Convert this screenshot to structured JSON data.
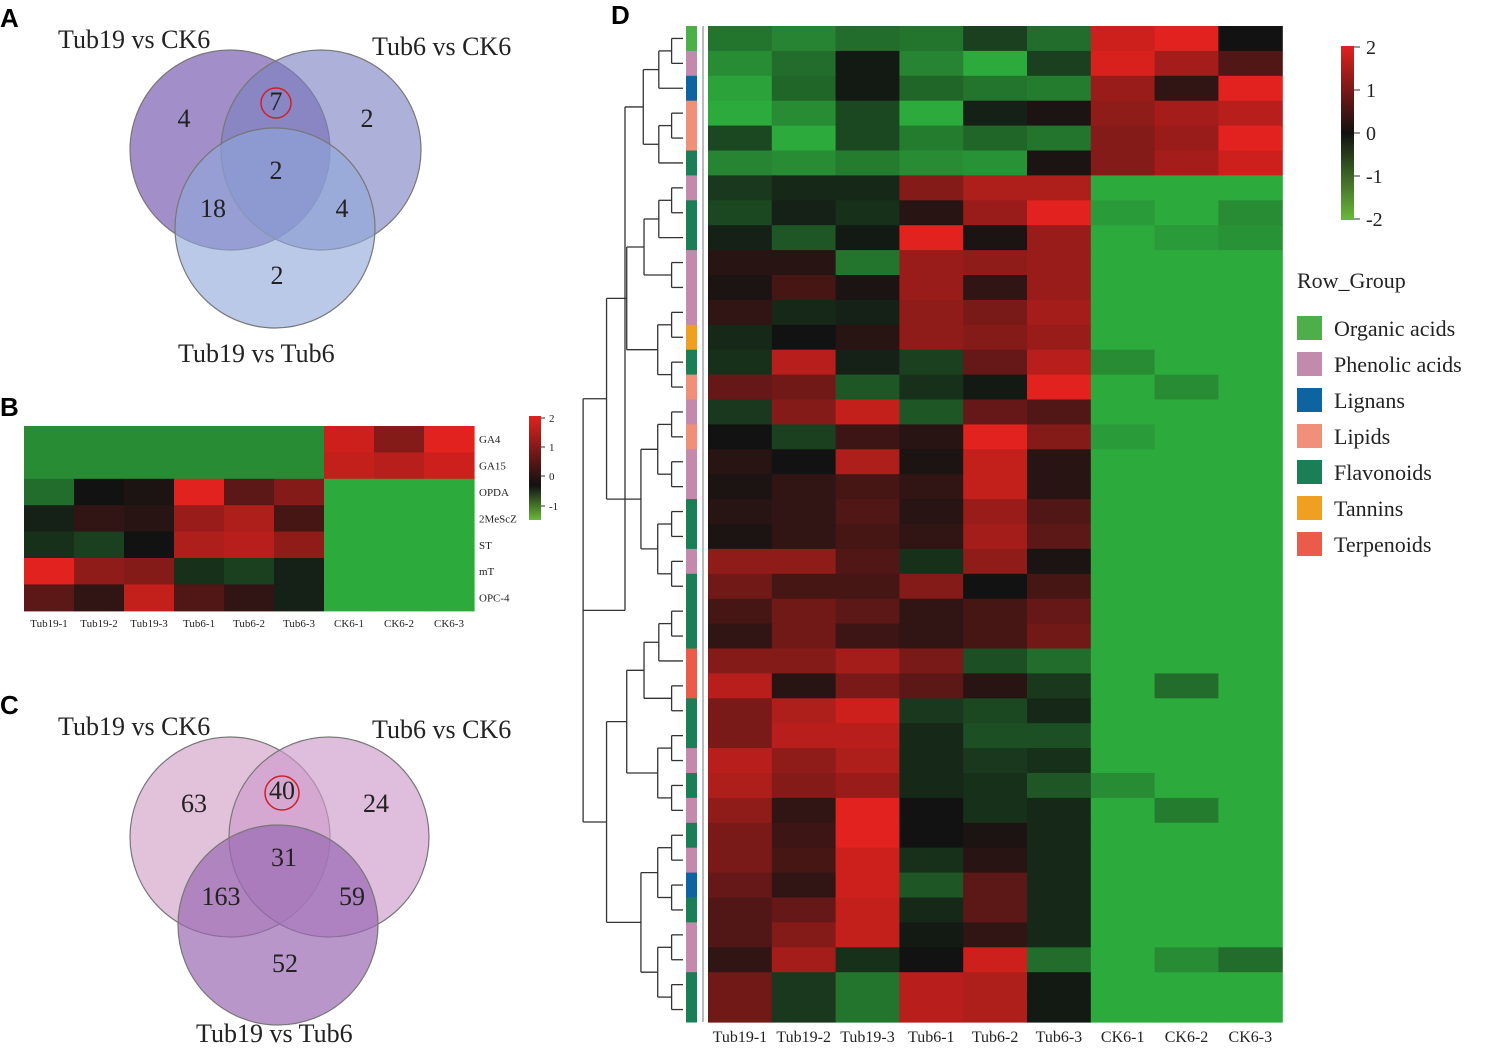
{
  "panels": {
    "A": {
      "letter": "A",
      "labels": [
        "Tub19 vs CK6",
        "Tub6 vs CK6",
        "Tub19 vs Tub6"
      ],
      "regions": {
        "only_tub19_ck6": "4",
        "only_tub6_ck6": "2",
        "only_tub19_tub6": "2",
        "tub19ck6_tub6ck6": "7",
        "tub19ck6_tub19tub6": "18",
        "tub6ck6_tub19tub6": "4",
        "all": "2"
      },
      "circle_colors": [
        "#7e62b3",
        "#7b80c0",
        "#8fa8da"
      ],
      "highlight": "tub19ck6_tub6ck6"
    },
    "B": {
      "letter": "B",
      "colorbar_ticks": [
        "2",
        "1",
        "0",
        "-1"
      ]
    },
    "C": {
      "letter": "C",
      "labels": [
        "Tub19 vs CK6",
        "Tub6 vs CK6",
        "Tub19 vs Tub6"
      ],
      "regions": {
        "only_tub19_ck6": "63",
        "only_tub6_ck6": "24",
        "only_tub19_tub6": "52",
        "tub19ck6_tub6ck6": "40",
        "tub19ck6_tub19tub6": "163",
        "tub6ck6_tub19tub6": "59",
        "all": "31"
      },
      "circle_colors": [
        "#d9b3d1",
        "#cc9acb",
        "#9a6ab4"
      ],
      "highlight": "tub19ck6_tub6ck6"
    },
    "D": {
      "letter": "D",
      "colorbar_ticks": [
        "2",
        "1",
        "0",
        "-1",
        "-2"
      ],
      "legend_title": "Row_Group",
      "groups": [
        {
          "name": "Organic acids",
          "color": "#4daf4a"
        },
        {
          "name": "Phenolic acids",
          "color": "#c28aac"
        },
        {
          "name": "Lignans",
          "color": "#0e64a0"
        },
        {
          "name": "Lipids",
          "color": "#f0907a"
        },
        {
          "name": "Flavonoids",
          "color": "#1a7f56"
        },
        {
          "name": "Tannins",
          "color": "#f0a020"
        },
        {
          "name": "Terpenoids",
          "color": "#ea5b4a"
        }
      ]
    }
  },
  "chart_data": [
    {
      "type": "heatmap",
      "panel": "B",
      "columns": [
        "Tub19-1",
        "Tub19-2",
        "Tub19-3",
        "Tub6-1",
        "Tub6-2",
        "Tub6-3",
        "CK6-1",
        "CK6-2",
        "CK6-3"
      ],
      "rows": [
        "GA4",
        "GA15",
        "OPDA",
        "2MeScZ",
        "ST",
        "mT",
        "OPC-4"
      ],
      "values": [
        [
          -0.8,
          -0.8,
          -0.8,
          -0.8,
          -0.8,
          -0.8,
          1.8,
          1.1,
          2.0
        ],
        [
          -0.8,
          -0.8,
          -0.8,
          -0.8,
          -0.8,
          -0.8,
          1.7,
          1.6,
          1.8
        ],
        [
          -0.6,
          0.0,
          0.1,
          2.0,
          0.7,
          1.1,
          -1.2,
          -1.2,
          -1.2
        ],
        [
          -0.1,
          0.3,
          0.2,
          1.3,
          1.5,
          0.5,
          -1.2,
          -1.2,
          -1.2
        ],
        [
          -0.2,
          -0.3,
          0.0,
          1.5,
          1.6,
          1.2,
          -1.2,
          -1.2,
          -1.2
        ],
        [
          2.0,
          1.2,
          1.1,
          -0.2,
          -0.3,
          -0.1,
          -1.2,
          -1.2,
          -1.2
        ],
        [
          0.7,
          0.3,
          1.7,
          0.6,
          0.3,
          -0.1,
          -1.2,
          -1.2,
          -1.2
        ]
      ],
      "color_range": [
        -1,
        2
      ]
    },
    {
      "type": "heatmap",
      "panel": "D",
      "columns": [
        "Tub19-1",
        "Tub19-2",
        "Tub19-3",
        "Tub6-1",
        "Tub6-2",
        "Tub6-3",
        "CK6-1",
        "CK6-2",
        "CK6-3"
      ],
      "row_groups": [
        "Organic acids",
        "Phenolic acids",
        "Lignans",
        "Lipids",
        "Lipids",
        "Flavonoids",
        "Phenolic acids",
        "Flavonoids",
        "Flavonoids",
        "Phenolic acids",
        "Phenolic acids",
        "Phenolic acids",
        "Tannins",
        "Flavonoids",
        "Lipids",
        "Phenolic acids",
        "Lipids",
        "Phenolic acids",
        "Phenolic acids",
        "Flavonoids",
        "Flavonoids",
        "Phenolic acids",
        "Flavonoids",
        "Flavonoids",
        "Flavonoids",
        "Terpenoids",
        "Terpenoids",
        "Flavonoids",
        "Flavonoids",
        "Phenolic acids",
        "Flavonoids",
        "Phenolic acids",
        "Flavonoids",
        "Phenolic acids",
        "Lignans",
        "Flavonoids",
        "Phenolic acids",
        "Phenolic acids",
        "Flavonoids",
        "Flavonoids"
      ],
      "values": [
        [
          -1.3,
          -1.5,
          -1.2,
          -1.3,
          -0.6,
          -1.2,
          1.8,
          2.0,
          0.0
        ],
        [
          -1.6,
          -1.2,
          -0.1,
          -1.5,
          -2.0,
          -0.6,
          1.9,
          1.4,
          0.6
        ],
        [
          -1.9,
          -1.1,
          -0.1,
          -1.1,
          -1.3,
          -1.4,
          1.3,
          0.3,
          2.0
        ],
        [
          -2.0,
          -1.6,
          -0.7,
          -2.0,
          -0.2,
          0.1,
          1.2,
          1.4,
          1.6
        ],
        [
          -0.7,
          -2.0,
          -0.7,
          -1.4,
          -1.1,
          -1.3,
          1.1,
          1.3,
          2.0
        ],
        [
          -1.5,
          -1.6,
          -1.4,
          -1.6,
          -1.7,
          0.1,
          1.1,
          1.4,
          1.8
        ],
        [
          -0.5,
          -0.3,
          -0.3,
          1.1,
          1.5,
          1.5,
          -2.0,
          -2.0,
          -2.0
        ],
        [
          -0.7,
          -0.2,
          -0.4,
          0.2,
          1.3,
          2.0,
          -1.8,
          -2.0,
          -1.6
        ],
        [
          -0.2,
          -0.9,
          -0.1,
          2.0,
          0.1,
          1.3,
          -2.0,
          -1.8,
          -1.7
        ],
        [
          0.2,
          0.2,
          -1.3,
          1.3,
          1.2,
          1.3,
          -2.0,
          -2.0,
          -2.0
        ],
        [
          0.1,
          0.5,
          0.1,
          1.3,
          0.3,
          1.3,
          -2.0,
          -2.0,
          -2.0
        ],
        [
          0.3,
          -0.3,
          -0.2,
          1.2,
          1.0,
          1.4,
          -2.0,
          -2.0,
          -2.0
        ],
        [
          -0.3,
          0.0,
          0.2,
          1.2,
          1.1,
          1.3,
          -2.0,
          -2.0,
          -2.0
        ],
        [
          -0.4,
          1.6,
          -0.2,
          -0.6,
          0.8,
          1.6,
          -1.6,
          -2.0,
          -2.0
        ],
        [
          0.8,
          0.9,
          -0.9,
          -0.4,
          -0.1,
          2.0,
          -2.0,
          -1.6,
          -2.0
        ],
        [
          -0.5,
          1.1,
          1.7,
          -0.9,
          0.8,
          0.6,
          -2.0,
          -2.0,
          -2.0
        ],
        [
          0.0,
          -0.6,
          0.4,
          0.2,
          2.0,
          1.1,
          -1.8,
          -2.0,
          -2.0
        ],
        [
          0.2,
          0.0,
          1.5,
          0.1,
          1.7,
          0.2,
          -2.0,
          -2.0,
          -2.0
        ],
        [
          0.1,
          0.3,
          0.5,
          0.3,
          1.7,
          0.2,
          -2.0,
          -2.0,
          -2.0
        ],
        [
          0.2,
          0.3,
          0.6,
          0.2,
          1.3,
          0.6,
          -2.0,
          -2.0,
          -2.0
        ],
        [
          0.1,
          0.3,
          0.5,
          0.3,
          1.4,
          0.7,
          -2.0,
          -2.0,
          -2.0
        ],
        [
          1.2,
          1.2,
          0.6,
          -0.4,
          1.2,
          0.1,
          -2.0,
          -2.0,
          -2.0
        ],
        [
          0.9,
          0.5,
          0.5,
          1.1,
          0.0,
          0.5,
          -2.0,
          -2.0,
          -2.0
        ],
        [
          0.5,
          0.9,
          0.7,
          0.3,
          0.5,
          0.8,
          -2.0,
          -2.0,
          -2.0
        ],
        [
          0.3,
          0.9,
          0.4,
          0.3,
          0.5,
          0.9,
          -2.0,
          -2.0,
          -2.0
        ],
        [
          1.1,
          1.1,
          1.4,
          1.0,
          -0.8,
          -1.2,
          -2.0,
          -2.0,
          -2.0
        ],
        [
          1.6,
          0.2,
          1.0,
          0.7,
          0.2,
          -0.5,
          -2.0,
          -1.2,
          -2.0
        ],
        [
          1.0,
          1.5,
          1.8,
          -0.5,
          -0.7,
          -0.3,
          -2.0,
          -2.0,
          -2.0
        ],
        [
          1.0,
          1.6,
          1.6,
          -0.3,
          -0.8,
          -0.8,
          -2.0,
          -2.0,
          -2.0
        ],
        [
          1.6,
          1.2,
          1.5,
          -0.3,
          -0.5,
          -0.4,
          -2.0,
          -2.0,
          -2.0
        ],
        [
          1.5,
          1.1,
          1.3,
          -0.3,
          -0.4,
          -0.9,
          -1.6,
          -2.0,
          -2.0
        ],
        [
          1.2,
          0.3,
          2.0,
          0.0,
          -0.4,
          -0.3,
          -2.0,
          -1.4,
          -2.0
        ],
        [
          1.0,
          0.4,
          2.0,
          0.0,
          0.1,
          -0.3,
          -2.0,
          -2.0,
          -2.0
        ],
        [
          1.0,
          0.5,
          1.8,
          -0.4,
          0.2,
          -0.3,
          -2.0,
          -2.0,
          -2.0
        ],
        [
          0.8,
          0.3,
          1.8,
          -0.9,
          0.7,
          -0.3,
          -2.0,
          -2.0,
          -2.0
        ],
        [
          0.6,
          0.8,
          1.7,
          -0.3,
          0.7,
          -0.3,
          -2.0,
          -2.0,
          -2.0
        ],
        [
          0.6,
          1.1,
          1.7,
          -0.1,
          0.3,
          -0.3,
          -2.0,
          -2.0,
          -2.0
        ],
        [
          0.3,
          1.4,
          -0.4,
          0.0,
          1.8,
          -1.2,
          -2.0,
          -1.6,
          -1.2
        ],
        [
          0.9,
          -0.5,
          -1.3,
          1.6,
          1.5,
          -0.1,
          -2.0,
          -2.0,
          -2.0
        ],
        [
          0.9,
          -0.5,
          -1.3,
          1.6,
          1.5,
          -0.1,
          -2.0,
          -2.0,
          -2.0
        ]
      ],
      "color_range": [
        -2,
        2
      ]
    }
  ]
}
